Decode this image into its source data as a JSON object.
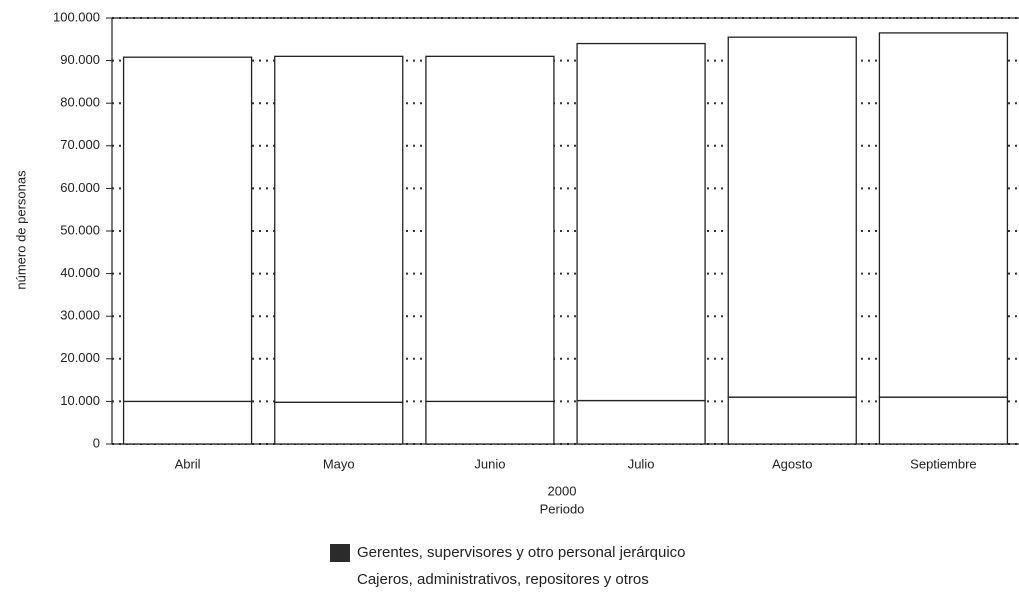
{
  "chart_data": {
    "type": "stacked_bar",
    "x_label_year": "2000",
    "x_label": "Periodo",
    "y_label": "número de personas",
    "categories": [
      "Abril",
      "Mayo",
      "Junio",
      "Julio",
      "Agosto",
      "Septiembre"
    ],
    "series": [
      {
        "name": "Gerentes, supervisores y otro personal jerárquico",
        "color": "#2b2b2b",
        "values": [
          10000,
          9800,
          10000,
          10200,
          11000,
          11000
        ]
      },
      {
        "name": "Cajeros, administrativos, repositores y otros",
        "color": "#ffffff",
        "values": [
          80800,
          81200,
          81000,
          83800,
          84500,
          85500
        ]
      }
    ],
    "ylim": [
      0,
      100000
    ],
    "yticks": [
      0,
      {
        "value": 10000,
        "label": "10.000"
      },
      {
        "value": 20000,
        "label": "20.000"
      },
      {
        "value": 30000,
        "label": "30.000"
      },
      {
        "value": 40000,
        "label": "40.000"
      },
      {
        "value": 50000,
        "label": "50.000"
      },
      {
        "value": 60000,
        "label": "60.000"
      },
      {
        "value": 70000,
        "label": "70.000"
      },
      {
        "value": 80000,
        "label": "80.000"
      },
      {
        "value": 90000,
        "label": "90.000"
      },
      {
        "value": 100000,
        "label": "100.000"
      }
    ],
    "grid": true
  }
}
